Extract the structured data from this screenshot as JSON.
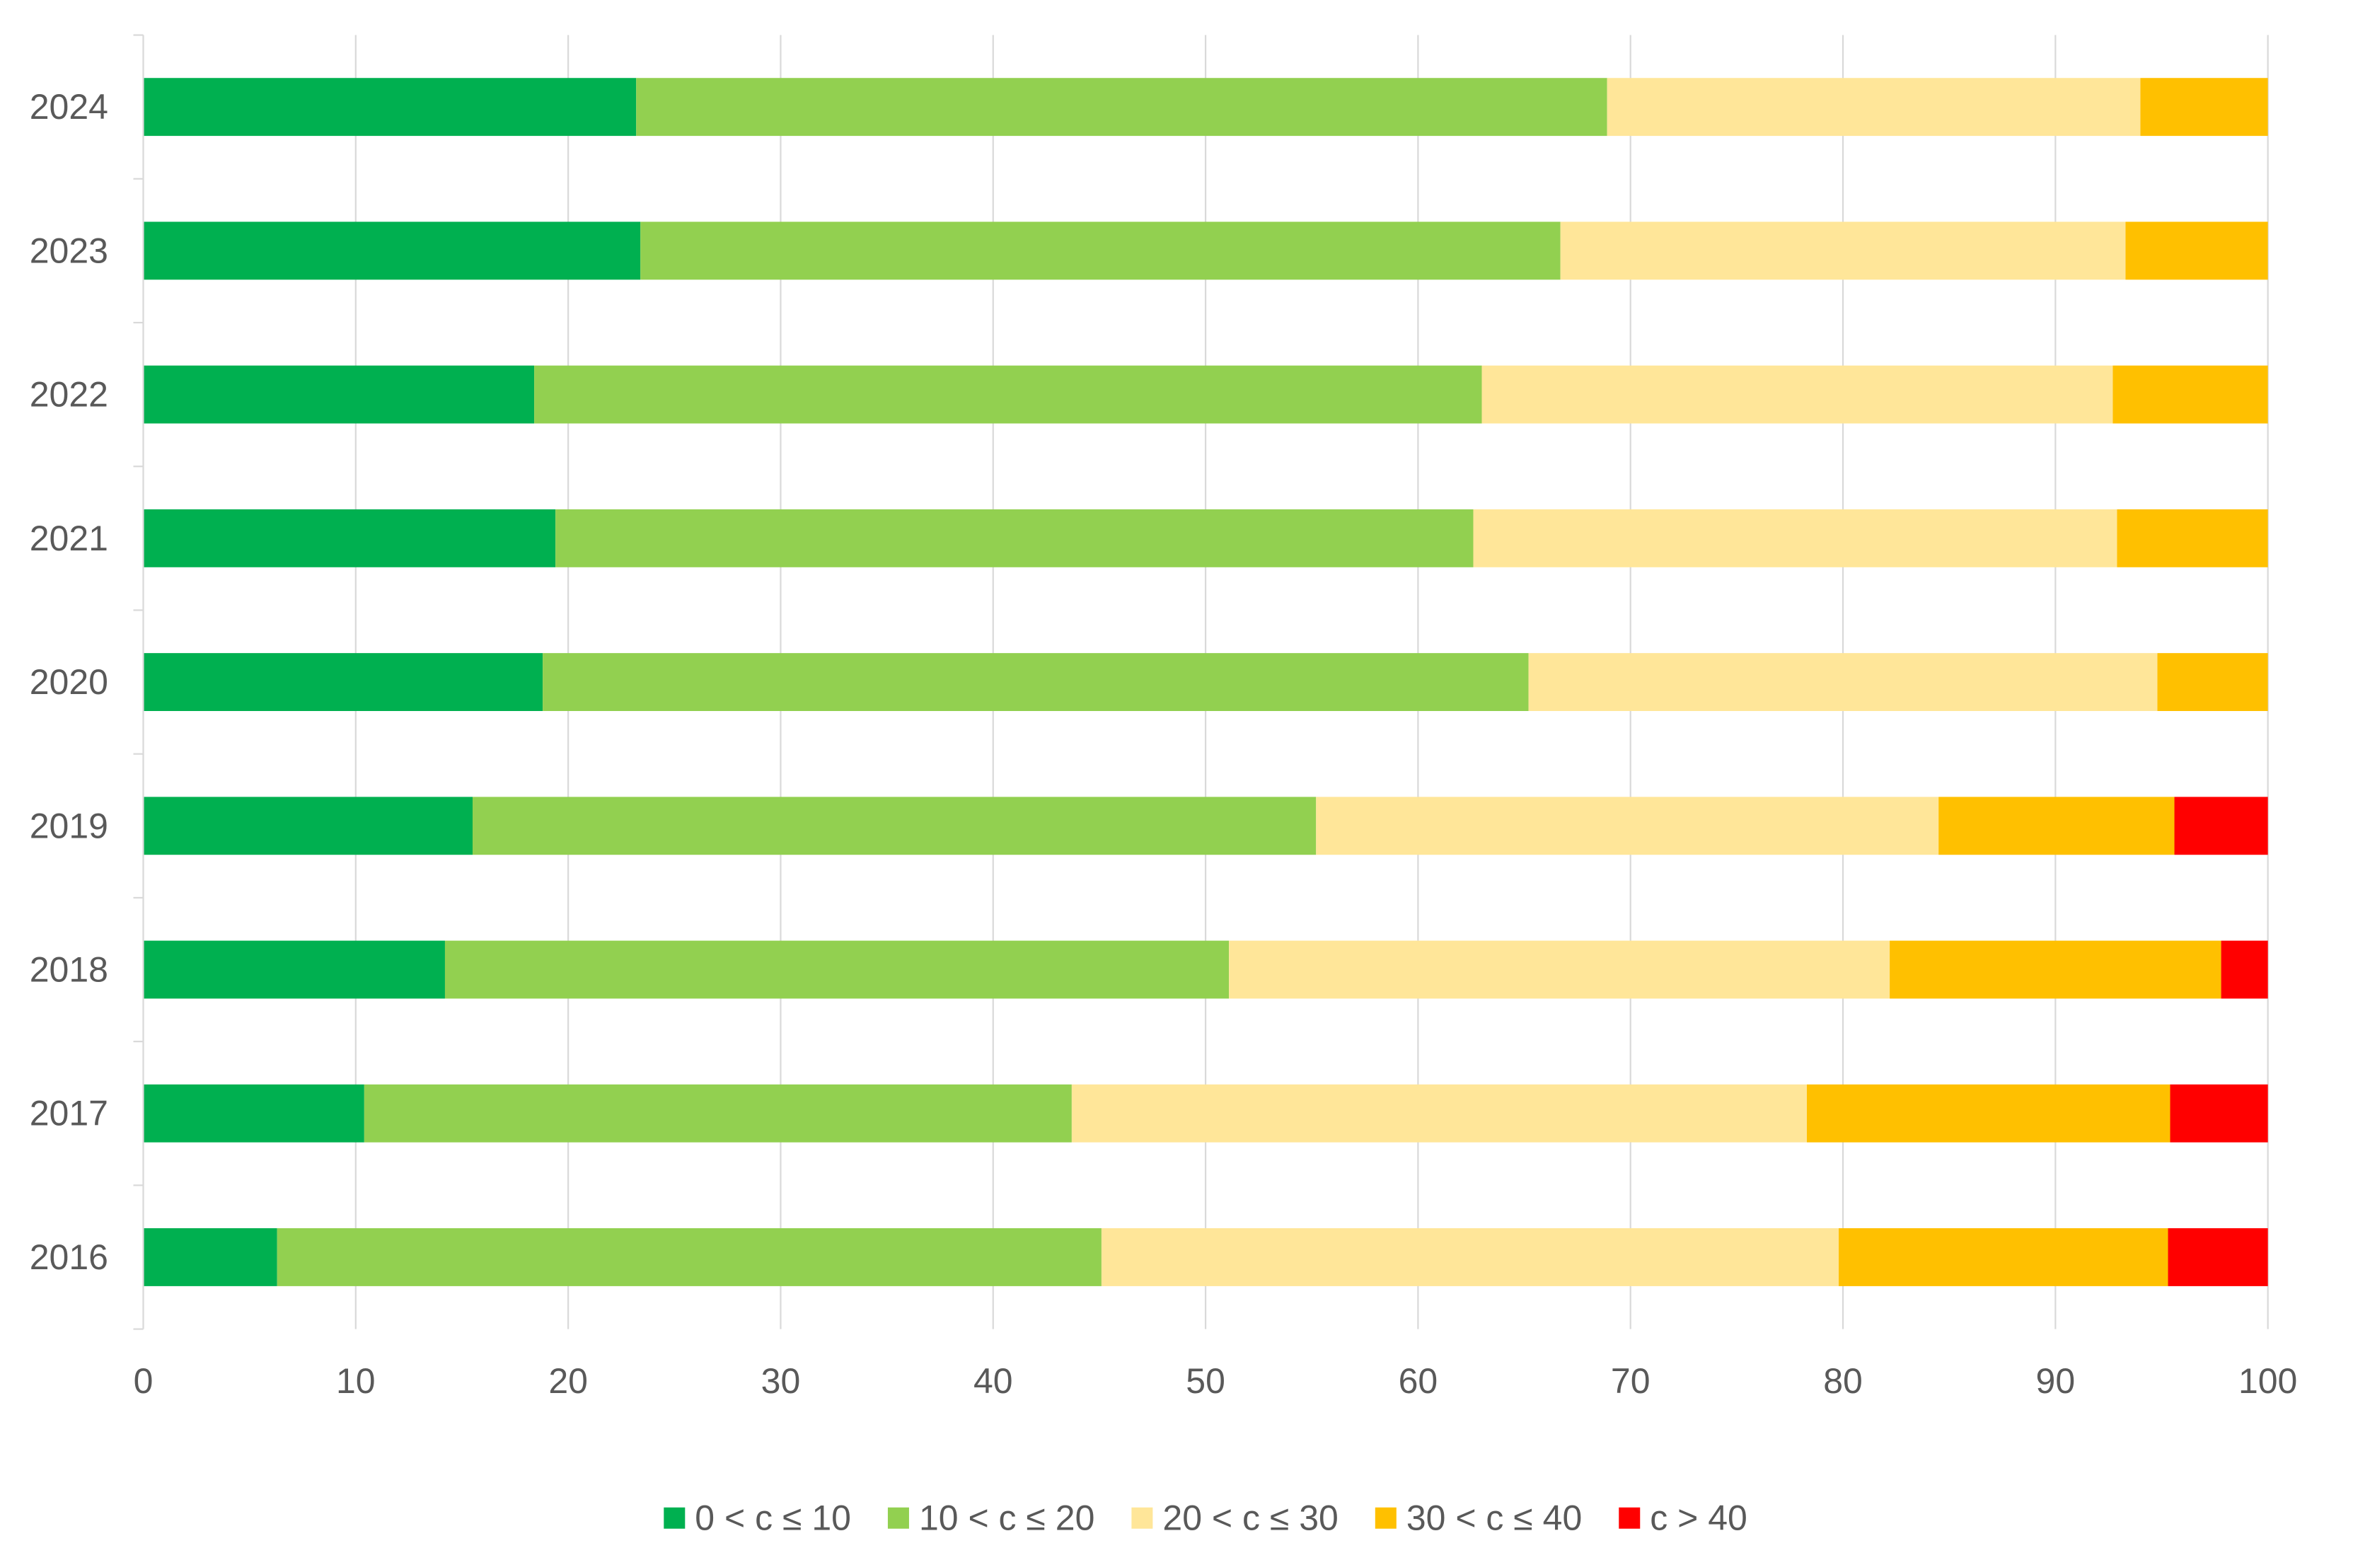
{
  "chart_data": {
    "type": "bar",
    "orientation": "horizontal",
    "stacked": true,
    "title": "",
    "xlabel": "",
    "ylabel": "",
    "xlim": [
      0,
      100
    ],
    "x_ticks": [
      "0",
      "10",
      "20",
      "30",
      "40",
      "50",
      "60",
      "70",
      "80",
      "90",
      "100"
    ],
    "grid": "vertical",
    "legend_position": "bottom",
    "categories": [
      "2024",
      "2023",
      "2022",
      "2021",
      "2020",
      "2019",
      "2018",
      "2017",
      "2016"
    ],
    "series": [
      {
        "name": "0 < c ≤ 10",
        "color": "#00B050",
        "values": [
          23.2,
          23.4,
          18.4,
          19.4,
          18.8,
          15.5,
          14.2,
          10.4,
          6.3
        ]
      },
      {
        "name": "10 < c ≤ 20",
        "color": "#92D050",
        "values": [
          45.7,
          43.3,
          44.6,
          43.2,
          46.4,
          39.7,
          36.9,
          33.3,
          38.8
        ]
      },
      {
        "name": "20 < c ≤ 30",
        "color": "#FFE699",
        "values": [
          25.1,
          26.6,
          29.7,
          30.3,
          29.6,
          29.3,
          31.1,
          34.6,
          34.7
        ]
      },
      {
        "name": "30 < c ≤ 40",
        "color": "#FFC000",
        "values": [
          6.0,
          6.7,
          7.3,
          7.1,
          5.2,
          11.1,
          15.6,
          17.1,
          15.5
        ]
      },
      {
        "name": "c > 40",
        "color": "#FF0000",
        "values": [
          0,
          0,
          0,
          0,
          0,
          4.4,
          2.2,
          4.6,
          4.7
        ]
      }
    ]
  }
}
